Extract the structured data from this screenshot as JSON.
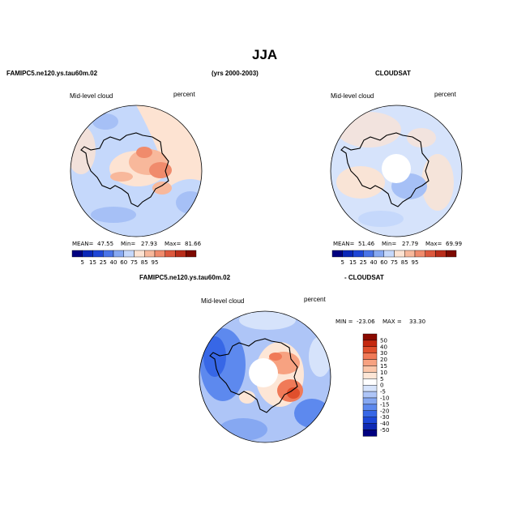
{
  "page": {
    "title": "JJA",
    "model_case": "FAMIPC5.ne120.ys.tau60m.02",
    "years": "(yrs 2000-2003)",
    "obs_case": "CLOUDSAT",
    "diff_model": "FAMIPC5.ne120.ys.tau60m.02",
    "diff_obs": "- CLOUDSAT"
  },
  "colors": {
    "abs_scale": [
      "#000080",
      "#0a27b8",
      "#1e46d6",
      "#4a74e8",
      "#87a9f2",
      "#c5d8fb",
      "#fde3d2",
      "#f8b89b",
      "#f08b6c",
      "#dc583d",
      "#b92d1a",
      "#7d0a00"
    ],
    "diff_scale": [
      "#000080",
      "#0e2ab5",
      "#1c47d8",
      "#3767e6",
      "#5d89ee",
      "#86a8f2",
      "#aec5f7",
      "#d6e3fb",
      "#ffffff",
      "#fde6d6",
      "#fbc6a9",
      "#f7a281",
      "#f07a58",
      "#e04f2c",
      "#c5280f",
      "#8a0a00"
    ]
  },
  "chart_data": [
    {
      "type": "heatmap",
      "panel": "model",
      "title": "Mid-level cloud",
      "units": "percent",
      "stats": {
        "mean_label": "MEAN=",
        "mean": "47.55",
        "min_label": "Min=",
        "min": "27.93",
        "max_label": "Max=",
        "max": "81.66"
      },
      "colorbar_ticks": [
        "5",
        "15",
        "25",
        "40",
        "60",
        "75",
        "85",
        "95"
      ]
    },
    {
      "type": "heatmap",
      "panel": "obs",
      "title": "Mid-level cloud",
      "units": "percent",
      "stats": {
        "mean_label": "MEAN=",
        "mean": "51.46",
        "min_label": "Min=",
        "min": "27.79",
        "max_label": "Max=",
        "max": "69.99"
      },
      "colorbar_ticks": [
        "5",
        "15",
        "25",
        "40",
        "60",
        "75",
        "85",
        "95"
      ]
    },
    {
      "type": "heatmap",
      "panel": "difference",
      "title": "Mid-level cloud",
      "units": "percent",
      "stats": {
        "min_label": "MIN =",
        "min": "-23.06",
        "max_label": "MAX =",
        "max": "33.30"
      },
      "colorbar_ticks": [
        "50",
        "40",
        "30",
        "20",
        "15",
        "10",
        "5",
        "0",
        "-5",
        "-10",
        "-15",
        "-20",
        "-30",
        "-40",
        "-50"
      ]
    }
  ]
}
